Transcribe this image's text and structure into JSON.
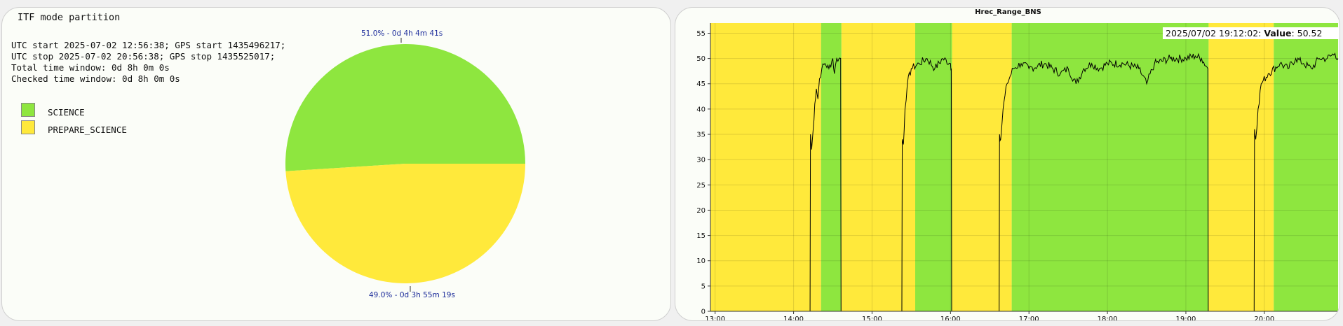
{
  "left_panel": {
    "title": "ITF mode partition",
    "info_lines": [
      "UTC start 2025-07-02 12:56:38; GPS start 1435496217;",
      "UTC stop 2025-07-02 20:56:38; GPS stop 1435525017;",
      "Total time window: 0d 8h 0m 0s",
      "Checked time window: 0d 8h 0m 0s"
    ],
    "legend": [
      {
        "label": "SCIENCE",
        "color": "#8ee63f"
      },
      {
        "label": "PREPARE_SCIENCE",
        "color": "#ffe93b"
      }
    ],
    "pie": {
      "slices": [
        {
          "mode": "SCIENCE",
          "fraction": 0.51,
          "label": "51.0% - 0d 4h 4m 41s",
          "color": "#8ee63f"
        },
        {
          "mode": "PREPARE_SCIENCE",
          "fraction": 0.49,
          "label": "49.0% - 0d 3h 55m 19s",
          "color": "#ffe93b"
        }
      ]
    }
  },
  "right_panel": {
    "title": "Hrec_Range_BNS",
    "tooltip": {
      "time": "2025/07/02 19:12:02:",
      "key": "Value",
      "value": "50.52"
    }
  },
  "chart_data": {
    "type": "line",
    "title": "Hrec_Range_BNS",
    "x_ticks": [
      "13:00",
      "14:00",
      "15:00",
      "16:00",
      "17:00",
      "18:00",
      "19:00",
      "20:00"
    ],
    "y_ticks": [
      0,
      5,
      10,
      15,
      20,
      25,
      30,
      35,
      40,
      45,
      50,
      55
    ],
    "ylim": [
      0,
      57
    ],
    "xlim_hours": [
      12.94,
      20.94
    ],
    "grid": true,
    "mode_bands": [
      {
        "mode": "PREPARE_SCIENCE",
        "start": 12.94,
        "end": 14.35,
        "color": "#ffe93b"
      },
      {
        "mode": "SCIENCE",
        "start": 14.35,
        "end": 14.61,
        "color": "#8ee63f"
      },
      {
        "mode": "PREPARE_SCIENCE",
        "start": 14.61,
        "end": 15.55,
        "color": "#ffe93b"
      },
      {
        "mode": "SCIENCE",
        "start": 15.55,
        "end": 16.02,
        "color": "#8ee63f"
      },
      {
        "mode": "PREPARE_SCIENCE",
        "start": 16.02,
        "end": 16.78,
        "color": "#ffe93b"
      },
      {
        "mode": "SCIENCE",
        "start": 16.78,
        "end": 19.29,
        "color": "#8ee63f"
      },
      {
        "mode": "PREPARE_SCIENCE",
        "start": 19.29,
        "end": 20.12,
        "color": "#ffe93b"
      },
      {
        "mode": "SCIENCE",
        "start": 20.12,
        "end": 20.94,
        "color": "#8ee63f"
      }
    ],
    "series": [
      {
        "points": [
          [
            12.94,
            0
          ],
          [
            14.21,
            0
          ],
          [
            14.215,
            35
          ],
          [
            14.23,
            32
          ],
          [
            14.25,
            36
          ],
          [
            14.27,
            41
          ],
          [
            14.29,
            44
          ],
          [
            14.31,
            42
          ],
          [
            14.33,
            46
          ],
          [
            14.36,
            48
          ],
          [
            14.4,
            49
          ],
          [
            14.45,
            48
          ],
          [
            14.5,
            50
          ],
          [
            14.52,
            47
          ],
          [
            14.55,
            50
          ],
          [
            14.58,
            50
          ],
          [
            14.6,
            50
          ],
          [
            14.605,
            0
          ],
          [
            15.38,
            0
          ],
          [
            15.385,
            34
          ],
          [
            15.4,
            33
          ],
          [
            15.42,
            40
          ],
          [
            15.45,
            45
          ],
          [
            15.5,
            48
          ],
          [
            15.6,
            49
          ],
          [
            15.7,
            50
          ],
          [
            15.8,
            48
          ],
          [
            15.9,
            50
          ],
          [
            16.0,
            49
          ],
          [
            16.01,
            48
          ],
          [
            16.015,
            0
          ],
          [
            16.62,
            0
          ],
          [
            16.625,
            35
          ],
          [
            16.64,
            34
          ],
          [
            16.67,
            40
          ],
          [
            16.72,
            45
          ],
          [
            16.8,
            48
          ],
          [
            16.9,
            49
          ],
          [
            17.0,
            48
          ],
          [
            17.2,
            49
          ],
          [
            17.4,
            47
          ],
          [
            17.5,
            48
          ],
          [
            17.6,
            45
          ],
          [
            17.7,
            48
          ],
          [
            17.8,
            49
          ],
          [
            17.9,
            48
          ],
          [
            18.0,
            49
          ],
          [
            18.2,
            49
          ],
          [
            18.4,
            48
          ],
          [
            18.5,
            45
          ],
          [
            18.6,
            49
          ],
          [
            18.8,
            50
          ],
          [
            19.0,
            50
          ],
          [
            19.12,
            50.5
          ],
          [
            19.2,
            50
          ],
          [
            19.28,
            48
          ],
          [
            19.285,
            0
          ],
          [
            19.87,
            0
          ],
          [
            19.875,
            36
          ],
          [
            19.89,
            34
          ],
          [
            19.92,
            40
          ],
          [
            19.96,
            45
          ],
          [
            20.05,
            47
          ],
          [
            20.2,
            49
          ],
          [
            20.3,
            48
          ],
          [
            20.4,
            50
          ],
          [
            20.5,
            49
          ],
          [
            20.6,
            48
          ],
          [
            20.7,
            50
          ],
          [
            20.8,
            50
          ],
          [
            20.9,
            51
          ],
          [
            20.94,
            50
          ]
        ]
      }
    ]
  }
}
